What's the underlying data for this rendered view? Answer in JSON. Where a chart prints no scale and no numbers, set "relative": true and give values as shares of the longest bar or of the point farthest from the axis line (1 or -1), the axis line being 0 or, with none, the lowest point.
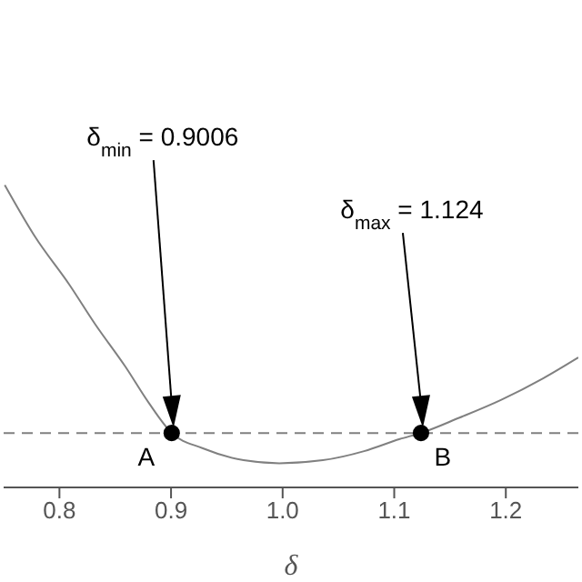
{
  "chart_data": {
    "type": "line",
    "relative": true,
    "xlabel": "δ",
    "xlim": [
      0.75,
      1.265
    ],
    "xticks": [
      0.8,
      0.9,
      {
        "value": 1,
        "label": "1.0"
      },
      1.1,
      1.2
    ],
    "grid": false,
    "series": [
      {
        "color": "#808080",
        "marker": "none",
        "x": [
          0.751,
          0.778,
          0.809,
          0.832,
          0.859,
          0.88,
          0.9006,
          0.928,
          0.965,
          0.997,
          1.036,
          1.073,
          1.105,
          1.124,
          1.158,
          1.196,
          1.233,
          1.265
        ],
        "values": [
          1.0,
          0.83,
          0.67,
          0.54,
          0.4,
          0.28,
          0.18,
          0.13,
          0.09,
          0.08,
          0.09,
          0.12,
          0.16,
          0.18,
          0.23,
          0.29,
          0.36,
          0.43
        ]
      },
      {
        "type": "scatter",
        "color": "#000000",
        "marker": "circle",
        "x": [
          0.9006,
          1.124
        ],
        "values": [
          0.18,
          0.18
        ]
      }
    ],
    "ref_lines": [
      {
        "axis": "y",
        "value": 0.18,
        "color": "#808080",
        "line_style": "dashed"
      }
    ],
    "annotations": [
      "δ$_{min}$ = 0.9006",
      "δ$_{max}$ = 1.124",
      {
        "text": "A",
        "x": 0.9006,
        "y": 0.18
      },
      {
        "text": "B",
        "x": 1.124,
        "y": 0.18
      }
    ]
  }
}
